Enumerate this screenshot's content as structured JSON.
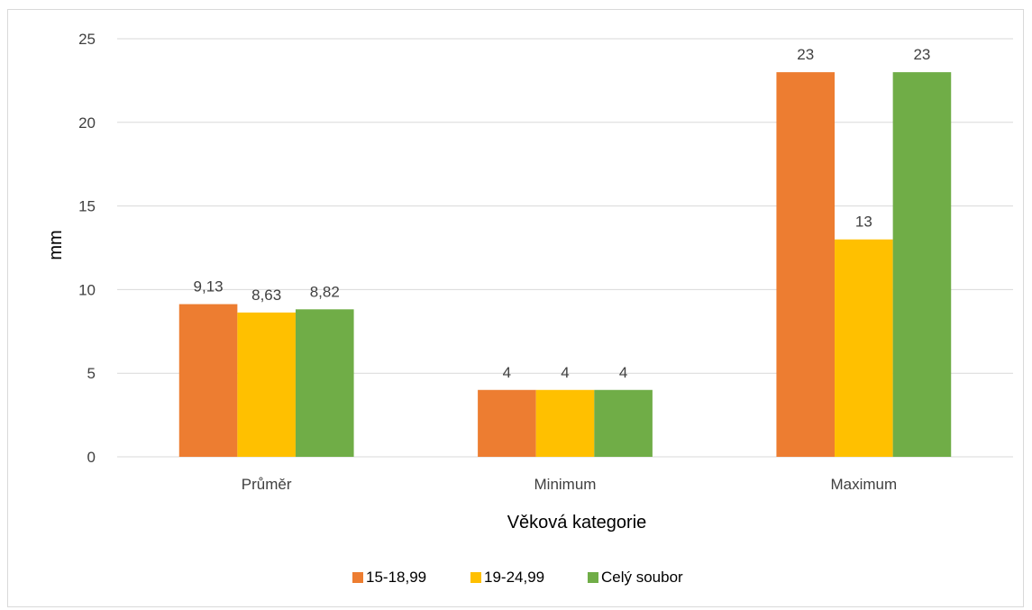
{
  "chart_data": {
    "type": "bar",
    "title": "",
    "xlabel": "Věková kategorie",
    "ylabel": "mm",
    "ylim": [
      0,
      25
    ],
    "yticks": [
      "0",
      "5",
      "10",
      "15",
      "20",
      "25"
    ],
    "grid": true,
    "legend_position": "bottom",
    "categories": [
      "Průměr",
      "Minimum",
      "Maximum"
    ],
    "series": [
      {
        "name": "15-18,99",
        "color": "#ed7d31",
        "values": [
          9.13,
          4,
          23
        ],
        "labels": [
          "9,13",
          "4",
          "23"
        ]
      },
      {
        "name": "19-24,99",
        "color": "#ffc000",
        "values": [
          8.63,
          4,
          13
        ],
        "labels": [
          "8,63",
          "4",
          "13"
        ]
      },
      {
        "name": "Celý soubor",
        "color": "#70ad47",
        "values": [
          8.82,
          4,
          23
        ],
        "labels": [
          "8,82",
          "4",
          "23"
        ]
      }
    ]
  }
}
